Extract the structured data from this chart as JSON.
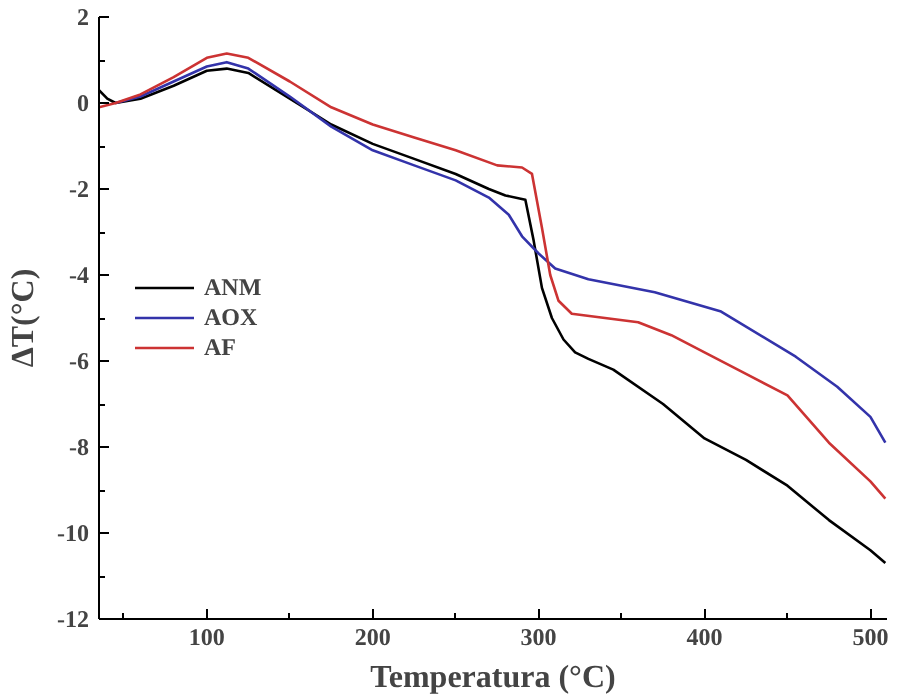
{
  "chart_data": {
    "type": "line",
    "xlabel": "Temperatura (°C)",
    "ylabel": "ΔT(°C)",
    "xlim": [
      35,
      510
    ],
    "ylim": [
      -12,
      2
    ],
    "xticks": [
      100,
      200,
      300,
      400,
      500
    ],
    "yticks": [
      -12,
      -10,
      -8,
      -6,
      -4,
      -2,
      0,
      2
    ],
    "grid": false,
    "legend": "left",
    "line_style": "solid",
    "marker": "none",
    "series": [
      {
        "name": "ANM",
        "color": "#000000",
        "x": [
          35,
          40,
          45,
          60,
          80,
          100,
          112,
          125,
          150,
          175,
          200,
          225,
          250,
          270,
          280,
          292,
          297,
          302,
          308,
          315,
          322,
          330,
          345,
          375,
          400,
          425,
          450,
          475,
          500,
          509
        ],
        "values": [
          0.3,
          0.1,
          0,
          0.1,
          0.4,
          0.75,
          0.8,
          0.7,
          0.1,
          -0.5,
          -0.95,
          -1.3,
          -1.65,
          -2.0,
          -2.15,
          -2.25,
          -3.2,
          -4.3,
          -5.0,
          -5.5,
          -5.8,
          -5.95,
          -6.2,
          -7.0,
          -7.8,
          -8.3,
          -8.9,
          -9.7,
          -10.4,
          -10.7
        ]
      },
      {
        "name": "AOX",
        "color": "#3333aa",
        "x": [
          45,
          60,
          80,
          100,
          112,
          125,
          150,
          175,
          200,
          225,
          250,
          270,
          282,
          290,
          300,
          310,
          330,
          370,
          410,
          455,
          480,
          500,
          509
        ],
        "values": [
          0,
          0.15,
          0.5,
          0.85,
          0.95,
          0.8,
          0.15,
          -0.55,
          -1.1,
          -1.45,
          -1.8,
          -2.2,
          -2.6,
          -3.1,
          -3.5,
          -3.85,
          -4.1,
          -4.4,
          -4.85,
          -5.9,
          -6.6,
          -7.3,
          -7.9
        ]
      },
      {
        "name": "AF",
        "color": "#cc3333",
        "x": [
          35,
          45,
          60,
          80,
          100,
          112,
          125,
          150,
          175,
          200,
          225,
          250,
          275,
          290,
          296,
          302,
          307,
          312,
          320,
          340,
          360,
          380,
          400,
          425,
          450,
          475,
          500,
          509
        ],
        "values": [
          -0.1,
          0,
          0.2,
          0.6,
          1.05,
          1.15,
          1.05,
          0.5,
          -0.1,
          -0.5,
          -0.8,
          -1.1,
          -1.45,
          -1.5,
          -1.65,
          -2.9,
          -4.0,
          -4.6,
          -4.9,
          -5.0,
          -5.1,
          -5.4,
          -5.8,
          -6.3,
          -6.8,
          -7.9,
          -8.8,
          -9.2
        ]
      }
    ]
  }
}
